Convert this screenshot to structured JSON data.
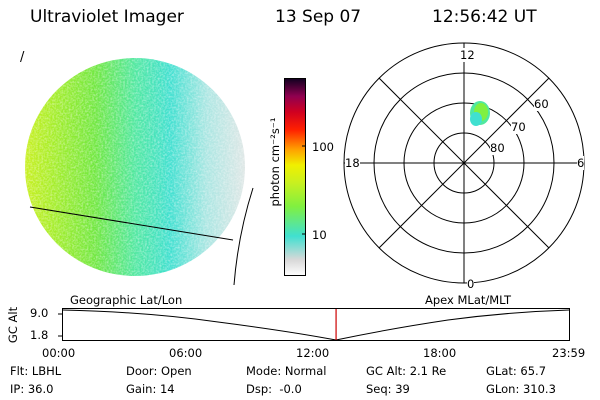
{
  "header": {
    "instrument": "Ultraviolet Imager",
    "date": "13 Sep 07",
    "time": "12:56:42 UT"
  },
  "image_panel": {
    "corner_mark": "/"
  },
  "colorbar": {
    "label": "photon cm⁻²s⁻¹",
    "ticks": [
      "100",
      "10"
    ],
    "colors": [
      "#ffffff",
      "#d8d8d8",
      "#40e0d0",
      "#80f040",
      "#c8f020",
      "#f0f000",
      "#ffa000",
      "#ff2000",
      "#d00020",
      "#900050",
      "#500060",
      "#100020"
    ]
  },
  "polar_plot": {
    "mlt_labels": [
      "12",
      "18",
      "6",
      "0"
    ],
    "lat_labels": [
      "60",
      "70",
      "80"
    ]
  },
  "timeline": {
    "axis_label": "GC Alt",
    "y_ticks": [
      "9.0",
      "1.8"
    ],
    "left_title": "Geographic Lat/Lon",
    "right_title": "Apex MLat/MLT",
    "x_ticks": [
      "00:00",
      "06:00",
      "12:00",
      "18:00",
      "23:59"
    ],
    "marker_color": "#cc0000",
    "marker_time_hours": 12.95
  },
  "info": {
    "flt": "Flt: LBHL",
    "door": "Door: Open",
    "mode": "Mode: Normal",
    "gcalt": "GC Alt: 2.1 Re",
    "glat": "GLat: 65.7",
    "ip": "IP: 36.0",
    "gain": "Gain: 14",
    "dsp": "Dsp:  -0.0",
    "seq": "Seq: 39",
    "glon": "GLon: 310.3"
  }
}
